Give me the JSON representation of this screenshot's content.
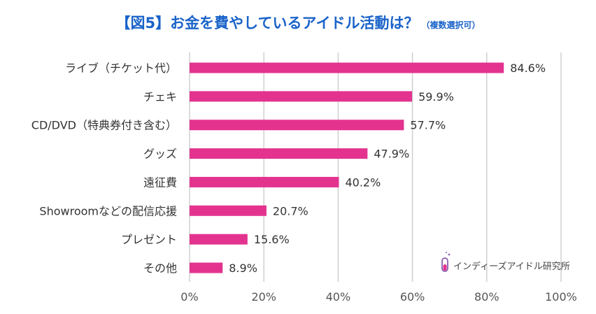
{
  "title": {
    "main": "【図5】お金を費やしているアイドル活動は？",
    "sub": "（複数選択可）"
  },
  "watermark": "インディーズアイドル研究所",
  "colors": {
    "bar": "#e3338f",
    "title": "#1a63c9",
    "grid": "#d0d0d0"
  },
  "chart_data": {
    "type": "bar",
    "orientation": "horizontal",
    "categories": [
      "ライブ（チケット代）",
      "チェキ",
      "CD/DVD（特典券付き含む）",
      "グッズ",
      "遠征費",
      "Showroomなどの配信応援",
      "プレゼント",
      "その他"
    ],
    "values": [
      84.6,
      59.9,
      57.7,
      47.9,
      40.2,
      20.7,
      15.6,
      8.9
    ],
    "value_labels": [
      "84.6%",
      "59.9%",
      "57.7%",
      "47.9%",
      "40.2%",
      "20.7%",
      "15.6%",
      "8.9%"
    ],
    "xlim": [
      0,
      100
    ],
    "x_ticks": [
      0,
      20,
      40,
      60,
      80,
      100
    ],
    "x_tick_labels": [
      "0%",
      "20%",
      "40%",
      "60%",
      "80%",
      "100%"
    ],
    "grid": true,
    "legend": "none"
  }
}
